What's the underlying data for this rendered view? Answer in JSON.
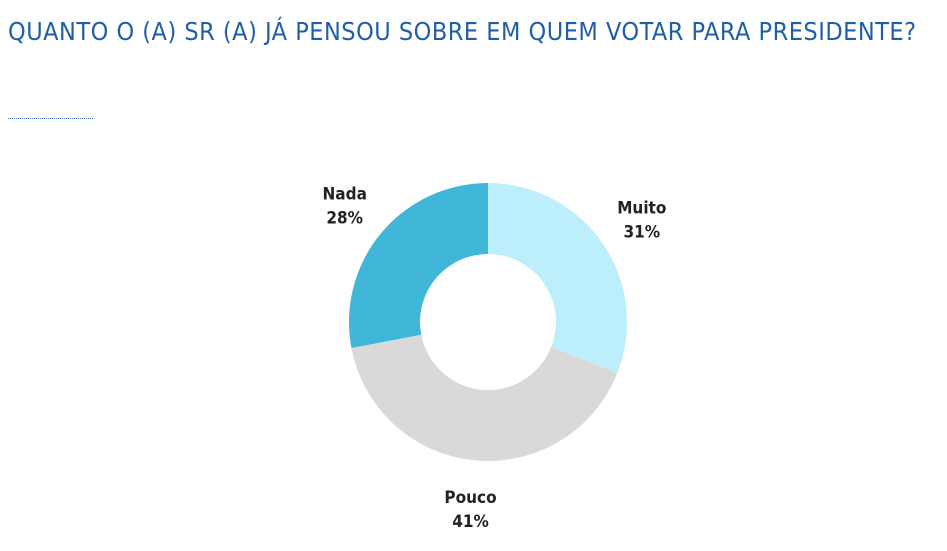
{
  "title": "QUANTO O (A) SR (A) JÁ PENSOU SOBRE EM QUEM VOTAR PARA PRESIDENTE?",
  "colors": {
    "title": "#1f5fa8",
    "divider": "#3366a8",
    "label_text": "#222222",
    "hole": "#ffffff"
  },
  "chart_data": {
    "type": "pie",
    "variant": "donut",
    "start_angle_deg": 0,
    "direction": "clockwise",
    "slices": [
      {
        "label": "Muito",
        "value": 31,
        "value_label": "31%",
        "color": "#bdeefb"
      },
      {
        "label": "Pouco",
        "value": 41,
        "value_label": "41%",
        "color": "#d9d9d9"
      },
      {
        "label": "Nada",
        "value": 28,
        "value_label": "28%",
        "color": "#40b7d8"
      }
    ],
    "legend": "none",
    "data_labels": "outside"
  }
}
